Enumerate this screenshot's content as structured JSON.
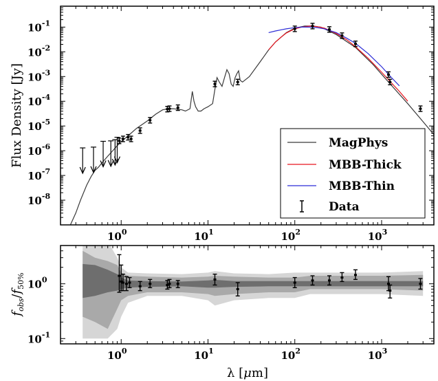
{
  "chart_data": [
    {
      "type": "line",
      "ylabel": "Flux Density [Jy]",
      "xscale": "log",
      "yscale": "log",
      "xlim": [
        0.2,
        4000
      ],
      "ylim": [
        1e-09,
        0.7
      ],
      "x_ticks": [
        {
          "value": 1,
          "base": "10",
          "exp": "0"
        },
        {
          "value": 10,
          "base": "10",
          "exp": "1"
        },
        {
          "value": 100,
          "base": "10",
          "exp": "2"
        },
        {
          "value": 1000,
          "base": "10",
          "exp": "3"
        }
      ],
      "y_ticks": [
        {
          "value": 0.1,
          "base": "10",
          "exp": "-1"
        },
        {
          "value": 0.01,
          "base": "10",
          "exp": "-2"
        },
        {
          "value": 0.001,
          "base": "10",
          "exp": "-3"
        },
        {
          "value": 0.0001,
          "base": "10",
          "exp": "-4"
        },
        {
          "value": 1e-05,
          "base": "10",
          "exp": "-5"
        },
        {
          "value": 1e-06,
          "base": "10",
          "exp": "-6"
        },
        {
          "value": 1e-07,
          "base": "10",
          "exp": "-7"
        },
        {
          "value": 1e-08,
          "base": "10",
          "exp": "-8"
        }
      ],
      "legend_position": "lower-right",
      "series": [
        {
          "name": "MagPhys",
          "color": "#3a3a3a",
          "x": [
            0.26,
            0.3,
            0.34,
            0.4,
            0.45,
            0.5,
            0.55,
            0.6,
            0.7,
            0.8,
            0.9,
            1.0,
            1.2,
            1.5,
            2.0,
            2.5,
            3.0,
            3.5,
            4.0,
            5.0,
            5.5,
            6.2,
            6.6,
            6.9,
            7.2,
            7.7,
            8.3,
            9.0,
            10.0,
            11.3,
            12.0,
            12.7,
            13.5,
            14.5,
            15.5,
            16.5,
            17.5,
            18.5,
            19.5,
            20.5,
            21.5,
            22.5,
            23.5,
            25,
            30,
            40,
            50,
            60,
            80,
            100,
            130,
            160,
            200,
            300,
            500,
            800,
            1200,
            2000,
            3000,
            4000
          ],
          "y": [
            1e-09,
            3e-09,
            1e-08,
            4e-08,
            9e-08,
            1.6e-07,
            2.2e-07,
            3.2e-07,
            6e-07,
            1e-06,
            1.6e-06,
            2.3e-06,
            4e-06,
            8e-06,
            1.6e-05,
            3e-05,
            4.5e-05,
            5e-05,
            5e-05,
            4.5e-05,
            4e-05,
            5e-05,
            0.00025,
            0.0001,
            6e-05,
            4e-05,
            4e-05,
            5e-05,
            6e-05,
            8e-05,
            0.0003,
            0.0009,
            0.0006,
            0.0004,
            0.0009,
            0.0019,
            0.0013,
            0.0005,
            0.0004,
            0.0009,
            0.0013,
            0.0017,
            0.0007,
            0.0006,
            0.001,
            0.004,
            0.012,
            0.025,
            0.06,
            0.09,
            0.11,
            0.11,
            0.1,
            0.05,
            0.015,
            0.003,
            0.0006,
            8e-05,
            1.5e-05,
            4.5e-06
          ]
        },
        {
          "name": "MBB-Thick",
          "color": "#e8141e",
          "x": [
            50,
            60,
            70,
            80,
            100,
            120,
            150,
            180,
            220,
            300,
            400,
            500,
            700,
            1000,
            1300,
            1600,
            2000
          ],
          "y": [
            0.012,
            0.025,
            0.04,
            0.058,
            0.085,
            0.1,
            0.11,
            0.105,
            0.09,
            0.055,
            0.03,
            0.016,
            0.0055,
            0.0015,
            0.00055,
            0.00025,
            0.0001
          ]
        },
        {
          "name": "MBB-Thin",
          "color": "#2a2ad6",
          "x": [
            50,
            60,
            70,
            80,
            100,
            120,
            150,
            180,
            220,
            300,
            400,
            500,
            700,
            1000,
            1300,
            1600
          ],
          "y": [
            0.06,
            0.07,
            0.078,
            0.085,
            0.095,
            0.1,
            0.1,
            0.095,
            0.085,
            0.06,
            0.035,
            0.022,
            0.0085,
            0.0025,
            0.0009,
            0.00042
          ]
        }
      ],
      "data_points": {
        "name": "Data",
        "detections": [
          {
            "x": 0.95,
            "y": 2.5e-06
          },
          {
            "x": 1.05,
            "y": 3e-06
          },
          {
            "x": 1.2,
            "y": 3.5e-06
          },
          {
            "x": 1.3,
            "y": 3e-06
          },
          {
            "x": 1.65,
            "y": 6.5e-06
          },
          {
            "x": 2.15,
            "y": 1.7e-05
          },
          {
            "x": 3.4,
            "y": 4.8e-05
          },
          {
            "x": 3.6,
            "y": 5e-05
          },
          {
            "x": 4.5,
            "y": 5.5e-05
          },
          {
            "x": 12,
            "y": 0.0005
          },
          {
            "x": 22,
            "y": 0.0006
          },
          {
            "x": 100,
            "y": 0.085
          },
          {
            "x": 160,
            "y": 0.11
          },
          {
            "x": 250,
            "y": 0.08
          },
          {
            "x": 350,
            "y": 0.045
          },
          {
            "x": 500,
            "y": 0.021
          },
          {
            "x": 1200,
            "y": 0.0012
          },
          {
            "x": 1250,
            "y": 0.0006
          },
          {
            "x": 2800,
            "y": 5e-05
          }
        ],
        "upper_limits": [
          {
            "x": 0.36,
            "y": 1.3e-06
          },
          {
            "x": 0.48,
            "y": 1.4e-06
          },
          {
            "x": 0.62,
            "y": 2.4e-06
          },
          {
            "x": 0.76,
            "y": 2.5e-06
          },
          {
            "x": 0.85,
            "y": 2.8e-06
          },
          {
            "x": 0.9,
            "y": 3.5e-06
          }
        ]
      }
    },
    {
      "type": "scatter",
      "xlabel_main": "λ [",
      "xlabel_unit_prefix": "μ",
      "xlabel_unit_rest": "m]",
      "ylabel_f": "f",
      "ylabel_num_sub": "obs",
      "ylabel_slash": "/",
      "ylabel_den_sub": "50%",
      "xscale": "log",
      "yscale": "log",
      "xlim": [
        0.2,
        4000
      ],
      "ylim": [
        0.08,
        5
      ],
      "y_ticks": [
        {
          "value": 1,
          "base": "10",
          "exp": "0"
        },
        {
          "value": 0.1,
          "base": "10",
          "exp": "-1"
        }
      ],
      "bands": {
        "x": [
          0.36,
          0.5,
          0.7,
          0.9,
          1.0,
          1.2,
          2,
          5,
          10,
          12,
          20,
          50,
          100,
          150,
          300,
          1000,
          3000
        ],
        "outer_lower": [
          0.1,
          0.1,
          0.1,
          0.15,
          0.25,
          0.45,
          0.6,
          0.6,
          0.5,
          0.4,
          0.5,
          0.55,
          0.55,
          0.65,
          0.65,
          0.65,
          0.6
        ],
        "outer_upper": [
          10,
          8,
          6,
          3,
          2,
          1.6,
          1.55,
          1.5,
          1.6,
          1.7,
          1.55,
          1.5,
          1.6,
          1.6,
          1.6,
          1.6,
          1.7
        ],
        "mid_lower": [
          0.25,
          0.2,
          0.15,
          0.35,
          0.5,
          0.6,
          0.7,
          0.7,
          0.65,
          0.6,
          0.65,
          0.7,
          0.7,
          0.8,
          0.8,
          0.8,
          0.75
        ],
        "mid_upper": [
          4,
          3,
          2.6,
          2.2,
          1.6,
          1.4,
          1.35,
          1.3,
          1.35,
          1.4,
          1.35,
          1.3,
          1.3,
          1.4,
          1.4,
          1.4,
          1.45
        ],
        "inner_lower": [
          0.55,
          0.6,
          0.7,
          0.75,
          0.8,
          0.85,
          0.88,
          0.9,
          0.85,
          0.85,
          0.88,
          0.9,
          0.9,
          0.9,
          0.9,
          0.9,
          0.9
        ],
        "inner_upper": [
          2.3,
          2.2,
          1.8,
          1.5,
          1.3,
          1.15,
          1.12,
          1.1,
          1.15,
          1.18,
          1.12,
          1.12,
          1.12,
          1.12,
          1.12,
          1.12,
          1.12
        ]
      },
      "points": [
        {
          "x": 0.95,
          "y": 1.4,
          "lo": 0.7,
          "hi": 3.4
        },
        {
          "x": 1.0,
          "y": 1.1,
          "lo": 0.75,
          "hi": 2.2
        },
        {
          "x": 1.05,
          "y": 1.05,
          "lo": 0.75,
          "hi": 1.5
        },
        {
          "x": 1.15,
          "y": 1.0,
          "lo": 0.75,
          "hi": 1.35
        },
        {
          "x": 1.25,
          "y": 1.05,
          "lo": 0.85,
          "hi": 1.3
        },
        {
          "x": 1.65,
          "y": 0.9,
          "lo": 0.75,
          "hi": 1.1
        },
        {
          "x": 2.15,
          "y": 1.0,
          "lo": 0.85,
          "hi": 1.2
        },
        {
          "x": 3.4,
          "y": 0.95,
          "lo": 0.8,
          "hi": 1.15
        },
        {
          "x": 3.6,
          "y": 1.0,
          "lo": 0.85,
          "hi": 1.2
        },
        {
          "x": 4.5,
          "y": 1.0,
          "lo": 0.85,
          "hi": 1.15
        },
        {
          "x": 12,
          "y": 1.2,
          "lo": 0.95,
          "hi": 1.5
        },
        {
          "x": 22,
          "y": 0.8,
          "lo": 0.6,
          "hi": 1.05
        },
        {
          "x": 100,
          "y": 1.05,
          "lo": 0.85,
          "hi": 1.3
        },
        {
          "x": 160,
          "y": 1.15,
          "lo": 0.95,
          "hi": 1.4
        },
        {
          "x": 250,
          "y": 1.15,
          "lo": 0.95,
          "hi": 1.4
        },
        {
          "x": 350,
          "y": 1.3,
          "lo": 1.1,
          "hi": 1.6
        },
        {
          "x": 500,
          "y": 1.45,
          "lo": 1.2,
          "hi": 1.8
        },
        {
          "x": 1200,
          "y": 1.0,
          "lo": 0.75,
          "hi": 1.35
        },
        {
          "x": 1250,
          "y": 0.75,
          "lo": 0.55,
          "hi": 0.95
        },
        {
          "x": 2800,
          "y": 1.0,
          "lo": 0.8,
          "hi": 1.25
        }
      ]
    }
  ]
}
